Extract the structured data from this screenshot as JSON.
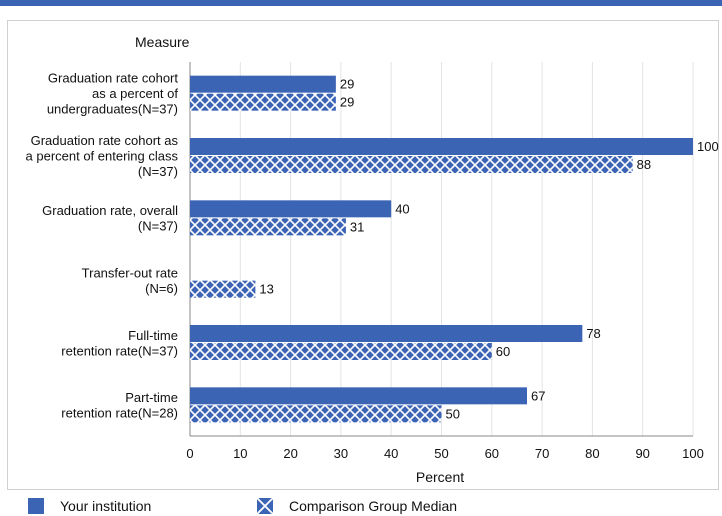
{
  "chart_data": {
    "type": "bar",
    "orientation": "horizontal",
    "ylabel": "Measure",
    "xlabel": "Percent",
    "xlim": [
      0,
      100
    ],
    "xticks": [
      0,
      10,
      20,
      30,
      40,
      50,
      60,
      70,
      80,
      90,
      100
    ],
    "categories": [
      [
        "Graduation rate cohort",
        "as a percent of",
        "undergraduates(N=37)"
      ],
      [
        "Graduation rate cohort as",
        "a percent of entering class",
        "(N=37)"
      ],
      [
        "Graduation rate, overall",
        "(N=37)"
      ],
      [
        "Transfer-out rate",
        "(N=6)"
      ],
      [
        "Full-time",
        "retention rate(N=37)"
      ],
      [
        "Part-time",
        "retention rate(N=28)"
      ]
    ],
    "series": [
      {
        "name": "Your institution",
        "values": [
          29,
          100,
          40,
          null,
          78,
          67
        ]
      },
      {
        "name": "Comparison Group Median",
        "values": [
          29,
          88,
          31,
          13,
          60,
          50
        ]
      }
    ],
    "colors": {
      "bar": "#3c64b5",
      "hatch_bg": "#3c64b5",
      "hatch_line": "#ffffff"
    },
    "legend_position": "bottom"
  }
}
